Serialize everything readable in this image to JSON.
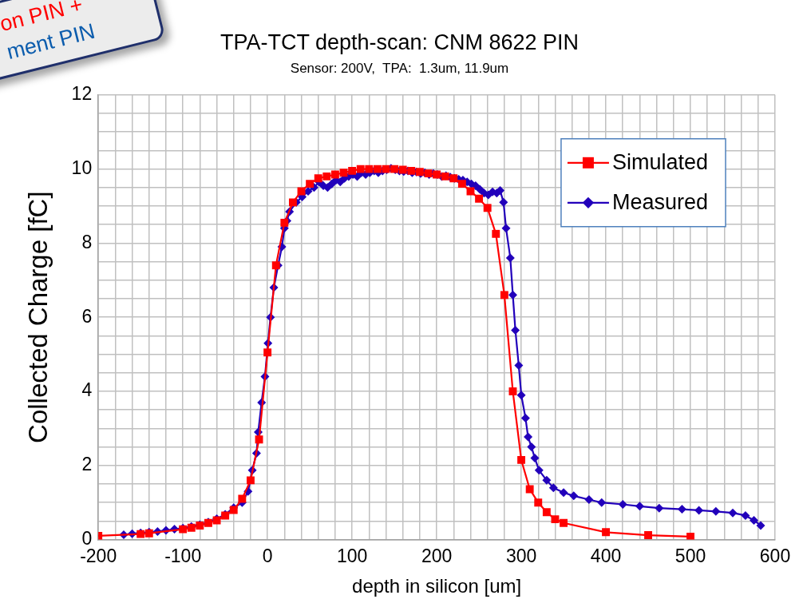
{
  "chart_data": {
    "type": "line",
    "title": "TPA-TCT depth-scan: CNM 8622 PIN",
    "subtitle": "Sensor: 200V,  TPA:  1.3um, 11.9um",
    "xlabel": "depth in silicon [um]",
    "ylabel": "Collected Charge [fC]",
    "annotations": [
      "on PIN +",
      "ment PIN"
    ],
    "xlim": [
      -200,
      600
    ],
    "ylim": [
      0,
      12
    ],
    "xticks": [
      -200,
      {
        "value": -180,
        "label": null
      },
      {
        "value": -160,
        "label": null
      },
      {
        "value": -140,
        "label": null
      },
      {
        "value": -120,
        "label": null
      },
      -100,
      {
        "value": -80,
        "label": null
      },
      {
        "value": -60,
        "label": null
      },
      {
        "value": -40,
        "label": null
      },
      {
        "value": -20,
        "label": null
      },
      0,
      {
        "value": 20,
        "label": null
      },
      {
        "value": 40,
        "label": null
      },
      {
        "value": 60,
        "label": null
      },
      {
        "value": 80,
        "label": null
      },
      100,
      {
        "value": 120,
        "label": null
      },
      {
        "value": 140,
        "label": null
      },
      {
        "value": 160,
        "label": null
      },
      {
        "value": 180,
        "label": null
      },
      200,
      {
        "value": 220,
        "label": null
      },
      {
        "value": 240,
        "label": null
      },
      {
        "value": 260,
        "label": null
      },
      {
        "value": 280,
        "label": null
      },
      300,
      {
        "value": 320,
        "label": null
      },
      {
        "value": 340,
        "label": null
      },
      {
        "value": 360,
        "label": null
      },
      {
        "value": 380,
        "label": null
      },
      400,
      {
        "value": 420,
        "label": null
      },
      {
        "value": 440,
        "label": null
      },
      {
        "value": 460,
        "label": null
      },
      {
        "value": 480,
        "label": null
      },
      500,
      {
        "value": 520,
        "label": null
      },
      {
        "value": 540,
        "label": null
      },
      {
        "value": 560,
        "label": null
      },
      {
        "value": 580,
        "label": null
      },
      600
    ],
    "yticks": [
      0,
      {
        "value": 0.5,
        "label": null
      },
      {
        "value": 1,
        "label": null
      },
      {
        "value": 1.5,
        "label": null
      },
      2,
      {
        "value": 2.5,
        "label": null
      },
      {
        "value": 3,
        "label": null
      },
      {
        "value": 3.5,
        "label": null
      },
      4,
      {
        "value": 4.5,
        "label": null
      },
      {
        "value": 5,
        "label": null
      },
      {
        "value": 5.5,
        "label": null
      },
      6,
      {
        "value": 6.5,
        "label": null
      },
      {
        "value": 7,
        "label": null
      },
      {
        "value": 7.5,
        "label": null
      },
      8,
      {
        "value": 8.5,
        "label": null
      },
      {
        "value": 9,
        "label": null
      },
      {
        "value": 9.5,
        "label": null
      },
      10,
      {
        "value": 10.5,
        "label": null
      },
      {
        "value": 11,
        "label": null
      },
      {
        "value": 11.5,
        "label": null
      },
      12
    ],
    "grid": true,
    "legend": "top right",
    "line_style": "solid",
    "series": [
      {
        "name": "Simulated",
        "color": "#ff0000",
        "marker": "square",
        "x": [
          -200,
          -150,
          -140,
          -100,
          -90,
          -80,
          -70,
          -60,
          -50,
          -40,
          -30,
          -20,
          -10,
          0,
          10,
          20,
          30,
          40,
          50,
          60,
          70,
          80,
          90,
          100,
          110,
          120,
          130,
          140,
          150,
          160,
          170,
          180,
          190,
          200,
          210,
          220,
          230,
          240,
          250,
          260,
          270,
          280,
          290,
          300,
          310,
          320,
          330,
          340,
          350,
          400,
          450,
          500
        ],
        "values": [
          0.1,
          0.15,
          0.17,
          0.28,
          0.32,
          0.38,
          0.45,
          0.52,
          0.65,
          0.8,
          1.1,
          1.6,
          2.7,
          5.05,
          7.4,
          8.55,
          9.1,
          9.4,
          9.6,
          9.75,
          9.8,
          9.85,
          9.9,
          9.95,
          10,
          10,
          10,
          10,
          10,
          9.98,
          9.95,
          9.92,
          9.88,
          9.85,
          9.8,
          9.75,
          9.6,
          9.4,
          9.2,
          8.95,
          8.25,
          6.6,
          4,
          2.15,
          1.36,
          1,
          0.74,
          0.55,
          0.45,
          0.2,
          0.12,
          0.08
        ]
      },
      {
        "name": "Measured",
        "color": "#2200bb",
        "marker": "diamond",
        "x": [
          -170,
          -160,
          -150,
          -140,
          -130,
          -120,
          -110,
          -100,
          -90,
          -80,
          -70,
          -60,
          -50,
          -40,
          -30,
          -23,
          -18,
          -13,
          -11,
          -7,
          -3,
          0.5,
          3.5,
          7.5,
          12.5,
          17,
          20,
          23,
          26,
          34,
          41,
          48,
          55,
          61,
          66,
          71,
          76,
          81,
          86,
          91,
          96,
          101,
          106,
          111,
          116,
          121,
          126,
          131,
          136,
          141,
          146,
          151,
          156,
          161,
          166,
          171,
          176,
          181,
          186,
          191,
          196,
          201,
          206,
          211,
          216,
          221,
          226,
          231,
          236,
          241,
          246,
          251,
          256,
          261,
          266,
          271,
          275,
          279,
          282,
          287,
          290,
          293,
          297,
          300,
          305,
          308,
          312,
          316,
          321,
          330,
          338,
          350,
          362,
          380,
          395,
          420,
          440,
          463,
          490,
          510,
          530,
          550,
          565,
          575,
          583
        ],
        "values": [
          0.13,
          0.16,
          0.18,
          0.2,
          0.22,
          0.25,
          0.28,
          0.31,
          0.35,
          0.4,
          0.47,
          0.56,
          0.68,
          0.86,
          1.0,
          1.3,
          1.87,
          2.33,
          2.9,
          3.7,
          4.4,
          5.3,
          6,
          6.8,
          7.4,
          7.9,
          8.4,
          8.6,
          8.85,
          9.1,
          9.25,
          9.4,
          9.5,
          9.65,
          9.55,
          9.5,
          9.6,
          9.7,
          9.65,
          9.75,
          9.8,
          9.85,
          9.8,
          9.9,
          9.85,
          9.9,
          9.95,
          9.9,
          9.95,
          9.98,
          10.02,
          9.98,
          9.95,
          9.93,
          9.95,
          9.9,
          9.92,
          9.88,
          9.9,
          9.85,
          9.88,
          9.85,
          9.8,
          9.82,
          9.78,
          9.75,
          9.72,
          9.7,
          9.65,
          9.6,
          9.55,
          9.45,
          9.35,
          9.3,
          9.38,
          9.35,
          9.42,
          9.1,
          8.4,
          7.6,
          6.6,
          5.65,
          4.7,
          3.9,
          3.28,
          2.77,
          2.5,
          2.2,
          1.87,
          1.6,
          1.4,
          1.27,
          1.18,
          1.08,
          1,
          0.95,
          0.9,
          0.85,
          0.82,
          0.79,
          0.76,
          0.72,
          0.65,
          0.52,
          0.38
        ]
      }
    ]
  }
}
